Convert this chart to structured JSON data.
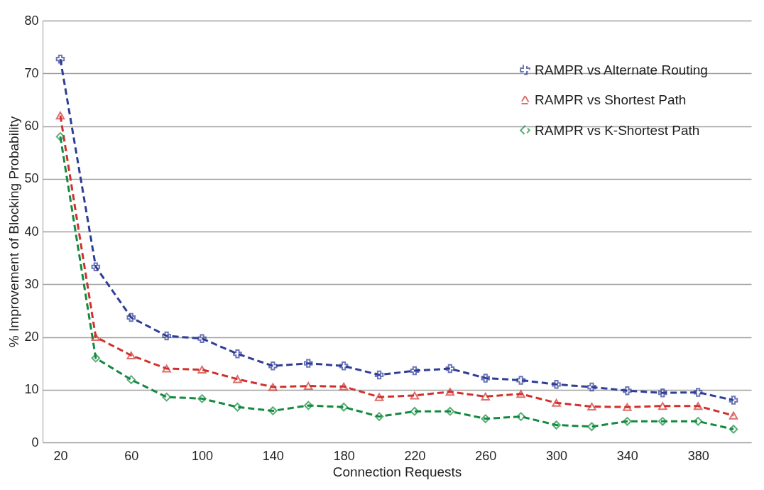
{
  "chart_data": {
    "type": "line",
    "xlabel": "Connection Requests",
    "ylabel": "% Improvement of  Blocking Probability",
    "categories": [
      "20",
      null,
      "60",
      null,
      "100",
      null,
      "140",
      null,
      "180",
      null,
      "220",
      null,
      "260",
      null,
      "300",
      null,
      "340",
      null,
      "380",
      null
    ],
    "ylim": [
      0,
      80
    ],
    "yticks": [
      0,
      10,
      20,
      30,
      40,
      50,
      60,
      70,
      80
    ],
    "grid": "y",
    "legend": "top right",
    "series": [
      {
        "name": "RAMPR vs Alternate Routing",
        "color": "#2e3d98",
        "marker": "cross",
        "line_style": "dashed",
        "values": [
          72.7,
          33.3,
          23.7,
          20.2,
          19.7,
          16.8,
          14.5,
          15.0,
          14.5,
          12.8,
          13.6,
          14.0,
          12.2,
          11.8,
          11.0,
          10.5,
          9.8,
          9.4,
          9.5,
          8.0
        ]
      },
      {
        "name": "RAMPR vs Shortest Path",
        "color": "#d0312d",
        "marker": "triangle",
        "line_style": "dashed",
        "values": [
          62.0,
          20.0,
          16.5,
          14.0,
          13.8,
          12.0,
          10.5,
          10.7,
          10.6,
          8.6,
          8.9,
          9.6,
          8.7,
          9.2,
          7.5,
          6.8,
          6.7,
          6.9,
          6.9,
          5.1
        ]
      },
      {
        "name": "RAMPR  vs K-Shortest Path",
        "color": "#138a3f",
        "marker": "diamond",
        "line_style": "dashed",
        "values": [
          58.0,
          16.0,
          11.9,
          8.6,
          8.3,
          6.7,
          6.0,
          7.0,
          6.7,
          4.9,
          5.9,
          5.9,
          4.5,
          4.9,
          3.3,
          3.0,
          4.0,
          4.0,
          4.0,
          2.5
        ]
      }
    ]
  }
}
